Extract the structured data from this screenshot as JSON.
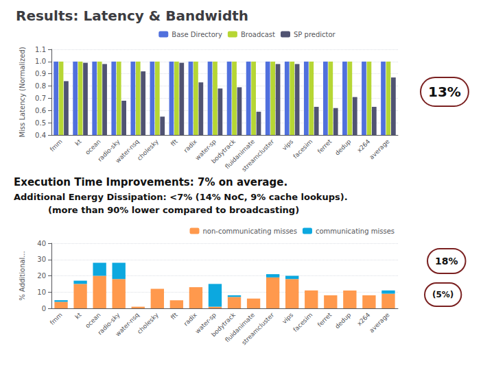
{
  "chart_data": [
    {
      "type": "bar",
      "title": "Results: Latency & Bandwidth",
      "annotations": [
        "Execution Time Improvements: 7% on average.",
        "Additional Energy Dissipation: <7% (14% NoC, 9% cache lookups).",
        "(more than 90% lower compared to broadcasting)",
        "13%",
        "18%",
        "(5%)"
      ],
      "categories": [
        "fmm",
        "kt",
        "ocean",
        "radio-sky",
        "water-nsq",
        "cholesky",
        "fft",
        "radix",
        "water-sp",
        "bodytrack",
        "fluidanimate",
        "streamcluster",
        "vips",
        "facesim",
        "ferret",
        "dedup",
        "x264",
        "average"
      ],
      "series": [
        {
          "name": "Base Directory",
          "values": [
            1.0,
            1.0,
            1.0,
            1.0,
            1.0,
            1.0,
            1.0,
            1.0,
            1.0,
            1.0,
            1.0,
            1.0,
            1.0,
            1.0,
            1.0,
            1.0,
            1.0,
            1.0
          ]
        },
        {
          "name": "Broadcast",
          "values": [
            1.0,
            1.0,
            1.0,
            1.0,
            1.0,
            1.0,
            1.0,
            1.0,
            1.0,
            1.0,
            1.0,
            1.0,
            1.0,
            1.0,
            1.0,
            1.0,
            1.0,
            1.0
          ]
        },
        {
          "name": "SP predictor",
          "values": [
            0.84,
            0.99,
            0.98,
            0.68,
            0.92,
            0.55,
            0.99,
            0.83,
            0.78,
            0.79,
            0.59,
            0.98,
            0.98,
            0.63,
            0.62,
            0.71,
            0.63,
            0.87
          ]
        }
      ],
      "ylabel": "Miss Latency (Normalized)",
      "ylim": [
        0.4,
        1.1
      ],
      "yticks": [
        0.4,
        0.5,
        0.6,
        0.7,
        0.8,
        0.9,
        {
          "value": 1.0,
          "label": "1.0"
        },
        1.1
      ],
      "grid": true,
      "legend": "top"
    },
    {
      "type": "bar",
      "stacked": true,
      "categories": [
        "fmm",
        "kt",
        "ocean",
        "radio-sky",
        "water-nsq",
        "cholesky",
        "fft",
        "radix",
        "water-sp",
        "bodytrack",
        "fluidanimate",
        "streamcluster",
        "vips",
        "facesim",
        "ferret",
        "dedup",
        "x264",
        "average"
      ],
      "series": [
        {
          "name": "non-communicating misses",
          "values": [
            4,
            15,
            20,
            18,
            1,
            12,
            5,
            13,
            1,
            7,
            6,
            19,
            18,
            11,
            8,
            11,
            8,
            9
          ]
        },
        {
          "name": "communicating misses",
          "values": [
            1,
            2,
            8,
            10,
            0,
            0,
            0,
            0,
            14,
            1,
            0,
            2,
            2,
            0,
            0,
            0,
            0,
            2
          ]
        }
      ],
      "ylabel": "% Additional...",
      "ylim": [
        0,
        40
      ],
      "yticks": [
        0,
        10,
        20,
        30,
        40
      ],
      "grid": true,
      "legend": "top-right"
    }
  ]
}
